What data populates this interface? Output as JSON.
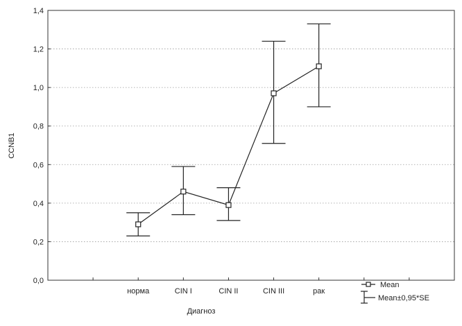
{
  "chart_data": {
    "type": "line",
    "title": "",
    "xlabel": "Диагноз",
    "ylabel": "CCNB1",
    "categories": [
      "норма",
      "CIN I",
      "CIN II",
      "CIN III",
      "рак"
    ],
    "ylim": [
      0.0,
      1.4
    ],
    "yticks": [
      "0,0",
      "0,2",
      "0,4",
      "0,6",
      "0,8",
      "1,0",
      "1,2",
      "1,4"
    ],
    "grid": true,
    "legend_position": "bottom-right",
    "series": [
      {
        "name": "Mean",
        "values": [
          0.29,
          0.46,
          0.39,
          0.97,
          1.11
        ],
        "lower": [
          0.23,
          0.34,
          0.31,
          0.71,
          0.9
        ],
        "upper": [
          0.35,
          0.59,
          0.48,
          1.24,
          1.33
        ]
      }
    ],
    "legend": {
      "mean_label": "Mean",
      "errbar_label": "Mean±0,95*SE"
    }
  }
}
